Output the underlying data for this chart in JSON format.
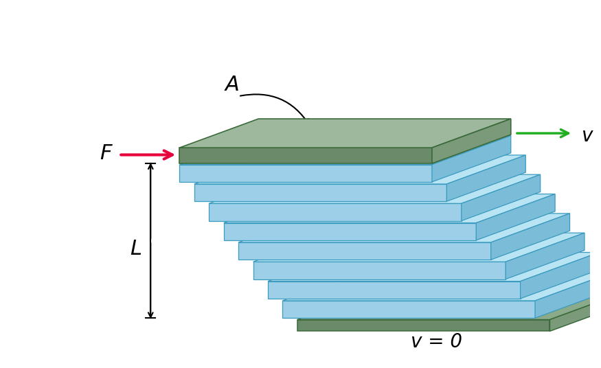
{
  "bg_color": "#ffffff",
  "layer_fill_top": "#b8e4f4",
  "layer_fill_front": "#9dd0e8",
  "layer_fill_right": "#7bbcd8",
  "layer_edge_color": "#3a9abf",
  "top_plate_top": "#9db89d",
  "top_plate_front": "#6a8a6a",
  "top_plate_right": "#7a9a7a",
  "top_plate_edge": "#3a6a3a",
  "bot_plate_top": "#8aaa8a",
  "bot_plate_front": "#6a8a6a",
  "bot_plate_right": "#7a9a7a",
  "bot_plate_edge": "#3a6a3a",
  "F_arrow_color": "#e8003d",
  "v_arrow_color": "#22b022",
  "dim_arrow_color": "#000000",
  "label_A": "A",
  "label_F": "F",
  "label_L": "L",
  "label_v": "v",
  "label_v0": "v = 0",
  "n_fluid_layers": 8,
  "figsize": [
    8.75,
    5.36
  ],
  "dpi": 100
}
